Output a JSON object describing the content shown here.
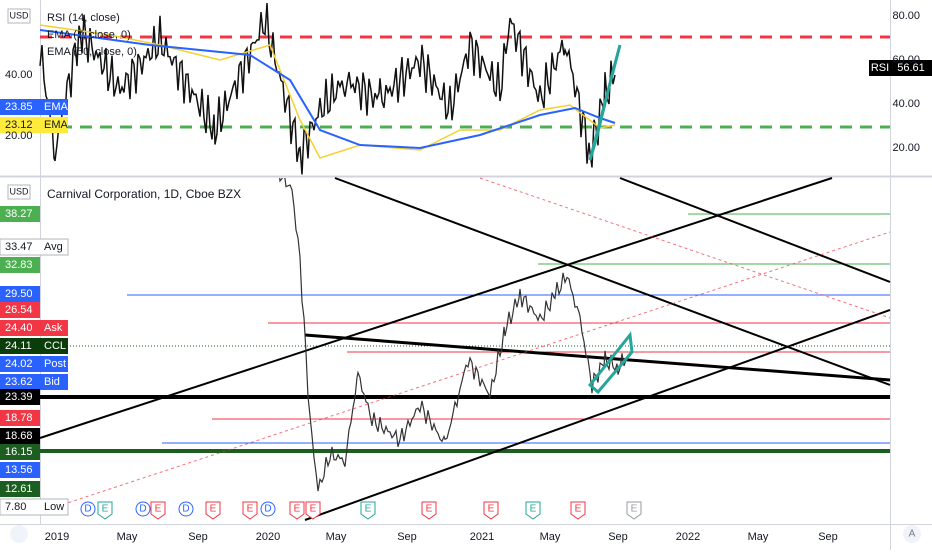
{
  "rsi_pane": {
    "currency": "USD",
    "legend": [
      "RSI (14, close)",
      "EMA (7, close, 0)",
      "EMA (50, close, 0)"
    ],
    "axis_labels": [
      "80.00",
      "60.00",
      "40.00",
      "20.00"
    ],
    "current": {
      "name": "RSI",
      "value": "56.61"
    },
    "left_labels": [
      {
        "value": "40.00"
      },
      {
        "value": "23.85",
        "tag": "EMA"
      },
      {
        "value": "23.12",
        "tag": "EMA"
      },
      {
        "value": "20.00"
      }
    ]
  },
  "price_pane": {
    "currency": "USD",
    "title": "Carnival Corporation, 1D, Cboe BZX",
    "price_labels": [
      {
        "value": "38.27"
      },
      {
        "value": "33.47",
        "tag": "Avg"
      },
      {
        "value": "32.83"
      },
      {
        "value": "29.50"
      },
      {
        "value": "26.54"
      },
      {
        "value": "24.40",
        "tag": "Ask"
      },
      {
        "value": "24.11",
        "tag": "CCL"
      },
      {
        "value": "24.02",
        "tag": "Post"
      },
      {
        "value": "23.62",
        "tag": "Bid"
      },
      {
        "value": "23.39"
      },
      {
        "value": "18.78"
      },
      {
        "value": "18.68"
      },
      {
        "value": "16.15"
      },
      {
        "value": "13.56"
      },
      {
        "value": "12.61"
      },
      {
        "value": "7.80",
        "tag": "Low"
      }
    ],
    "events": [
      "D",
      "E",
      "D",
      "E",
      "D",
      "E",
      "E",
      "D",
      "E",
      "E",
      "E",
      "E",
      "E",
      "E",
      "E",
      "E"
    ]
  },
  "time_axis": [
    "2019",
    "May",
    "Sep",
    "2020",
    "May",
    "Sep",
    "2021",
    "May",
    "Sep",
    "2022",
    "May",
    "Sep"
  ]
}
